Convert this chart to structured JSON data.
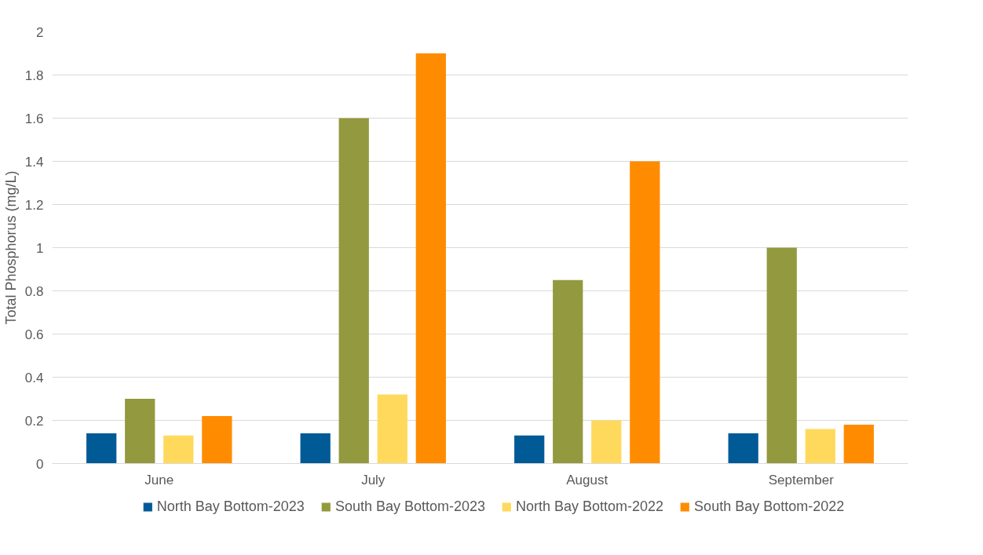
{
  "chart_data": {
    "type": "bar",
    "ylabel": "Total Phosphorus (mg/L)",
    "categories": [
      "June",
      "July",
      "August",
      "September"
    ],
    "series": [
      {
        "name": "North Bay Bottom-2023",
        "color": "#005a96",
        "values": [
          0.14,
          0.14,
          0.13,
          0.14
        ]
      },
      {
        "name": "South Bay Bottom-2023",
        "color": "#93993e",
        "values": [
          0.3,
          1.6,
          0.85,
          1.0
        ]
      },
      {
        "name": "North Bay Bottom-2022",
        "color": "#ffd95c",
        "values": [
          0.13,
          0.32,
          0.2,
          0.16
        ]
      },
      {
        "name": "South Bay Bottom-2022",
        "color": "#ff8c00",
        "values": [
          0.22,
          1.9,
          1.4,
          0.18
        ]
      }
    ],
    "ylim": [
      0,
      2
    ],
    "yticks": [
      0,
      0.2,
      0.4,
      0.6,
      0.8,
      1,
      1.2,
      1.4,
      1.6,
      1.8,
      2
    ],
    "grid": "y",
    "legend": "bottom"
  }
}
